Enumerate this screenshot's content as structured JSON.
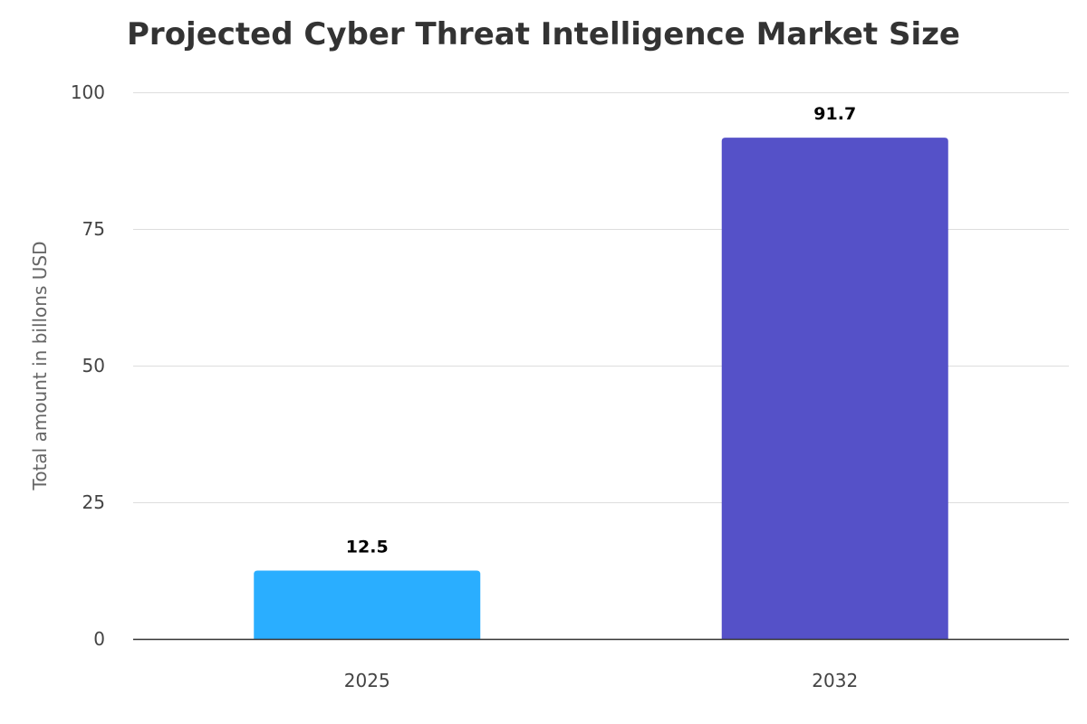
{
  "chart_data": {
    "type": "bar",
    "title": "Projected Cyber Threat Intelligence Market Size",
    "xlabel": "",
    "ylabel": "Total amount in billons USD",
    "categories": [
      "2025",
      "2032"
    ],
    "values": [
      12.5,
      91.7
    ],
    "data_labels": [
      "12.5",
      "91.7"
    ],
    "colors": [
      "#2AAEFF",
      "#5551C8"
    ],
    "ylim": [
      0,
      100
    ],
    "yticks": [
      0,
      25,
      50,
      75,
      100
    ],
    "ytick_labels": [
      "0",
      "25",
      "50",
      "75",
      "100"
    ],
    "grid": true,
    "legend": "none"
  }
}
